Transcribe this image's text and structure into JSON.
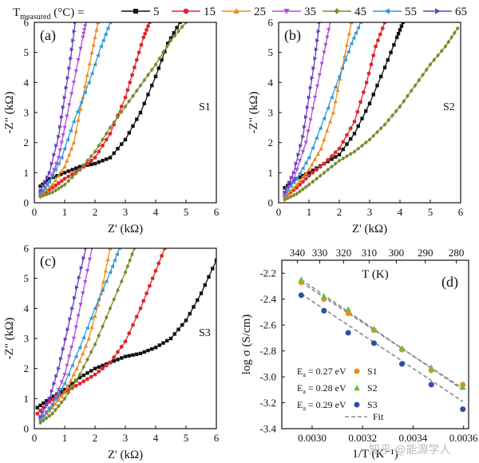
{
  "legend": {
    "label": "T",
    "label_sub": "measured",
    "label_unit": " (°C) =",
    "entries": [
      {
        "name": "5",
        "color": "#111111",
        "marker": "square"
      },
      {
        "name": "15",
        "color": "#e0262b",
        "marker": "circle"
      },
      {
        "name": "25",
        "color": "#f08a1c",
        "marker": "triangle-up"
      },
      {
        "name": "35",
        "color": "#b04fd8",
        "marker": "triangle-down"
      },
      {
        "name": "45",
        "color": "#7a8a2a",
        "marker": "diamond"
      },
      {
        "name": "55",
        "color": "#2f9ad8",
        "marker": "triangle-left"
      },
      {
        "name": "65",
        "color": "#6a3fbf",
        "marker": "triangle-right"
      }
    ]
  },
  "watermark": "知乎 @能源学人",
  "chart_data": [
    {
      "id": "a",
      "panel_label": "(a)",
      "sample_label": "S1",
      "type": "scatter",
      "xlabel": "Z' (kΩ)",
      "ylabel": "-Z\" (kΩ)",
      "xlim": [
        0,
        6
      ],
      "ylim": [
        0,
        6
      ],
      "xticks": [
        "0",
        "1",
        "2",
        "3",
        "4",
        "5",
        "6"
      ],
      "yticks": [
        "0",
        "1",
        "2",
        "3",
        "4",
        "5",
        "6"
      ],
      "series": [
        {
          "name": "5",
          "points": [
            [
              0.2,
              0.55
            ],
            [
              0.5,
              0.8
            ],
            [
              1.0,
              1.0
            ],
            [
              1.5,
              1.2
            ],
            [
              2.0,
              1.3
            ],
            [
              2.5,
              1.5
            ],
            [
              3.0,
              2.1
            ],
            [
              3.5,
              3.0
            ],
            [
              4.0,
              4.2
            ],
            [
              4.4,
              5.3
            ],
            [
              4.8,
              6.0
            ]
          ]
        },
        {
          "name": "15",
          "points": [
            [
              0.2,
              0.25
            ],
            [
              0.6,
              0.5
            ],
            [
              1.0,
              0.8
            ],
            [
              1.5,
              1.1
            ],
            [
              2.0,
              1.5
            ],
            [
              2.5,
              2.3
            ],
            [
              3.0,
              3.5
            ],
            [
              3.3,
              4.5
            ],
            [
              3.6,
              5.5
            ],
            [
              3.8,
              6.0
            ]
          ]
        },
        {
          "name": "25",
          "points": [
            [
              0.2,
              0.25
            ],
            [
              0.6,
              0.6
            ],
            [
              1.0,
              1.2
            ],
            [
              1.3,
              2.0
            ],
            [
              1.6,
              3.5
            ],
            [
              1.9,
              5.0
            ],
            [
              2.1,
              6.0
            ]
          ]
        },
        {
          "name": "35",
          "points": [
            [
              0.2,
              0.3
            ],
            [
              0.5,
              0.7
            ],
            [
              0.8,
              1.5
            ],
            [
              1.0,
              2.5
            ],
            [
              1.3,
              4.0
            ],
            [
              1.6,
              5.5
            ],
            [
              1.7,
              6.0
            ]
          ]
        },
        {
          "name": "45",
          "points": [
            [
              0.2,
              0.2
            ],
            [
              0.6,
              0.35
            ],
            [
              1.0,
              0.6
            ],
            [
              1.5,
              1.1
            ],
            [
              2.0,
              1.7
            ],
            [
              2.5,
              2.5
            ],
            [
              3.0,
              3.2
            ],
            [
              3.5,
              3.9
            ],
            [
              4.0,
              4.6
            ],
            [
              4.5,
              5.4
            ],
            [
              5.0,
              6.0
            ]
          ]
        },
        {
          "name": "55",
          "points": [
            [
              0.2,
              0.3
            ],
            [
              0.5,
              0.7
            ],
            [
              0.9,
              1.5
            ],
            [
              1.3,
              2.7
            ],
            [
              1.8,
              4.0
            ],
            [
              2.2,
              5.2
            ],
            [
              2.5,
              6.0
            ]
          ]
        },
        {
          "name": "65",
          "points": [
            [
              0.2,
              0.4
            ],
            [
              0.5,
              1.0
            ],
            [
              0.8,
              2.2
            ],
            [
              1.0,
              3.5
            ],
            [
              1.2,
              4.8
            ],
            [
              1.35,
              6.0
            ]
          ]
        }
      ]
    },
    {
      "id": "b",
      "panel_label": "(b)",
      "sample_label": "S2",
      "type": "scatter",
      "xlabel": "Z' (kΩ)",
      "ylabel": "-Z\" (kΩ)",
      "xlim": [
        0,
        6
      ],
      "ylim": [
        0,
        6
      ],
      "xticks": [
        "0",
        "1",
        "2",
        "3",
        "4",
        "5",
        "6"
      ],
      "yticks": [
        "0",
        "1",
        "2",
        "3",
        "4",
        "5",
        "6"
      ],
      "series": [
        {
          "name": "5",
          "points": [
            [
              0.2,
              0.5
            ],
            [
              0.6,
              0.8
            ],
            [
              1.0,
              1.0
            ],
            [
              1.5,
              1.3
            ],
            [
              2.0,
              1.6
            ],
            [
              2.5,
              2.3
            ],
            [
              3.0,
              3.3
            ],
            [
              3.5,
              4.5
            ],
            [
              3.9,
              5.5
            ],
            [
              4.1,
              6.0
            ]
          ]
        },
        {
          "name": "15",
          "points": [
            [
              0.2,
              0.2
            ],
            [
              0.6,
              0.5
            ],
            [
              1.0,
              0.9
            ],
            [
              1.5,
              1.3
            ],
            [
              2.0,
              1.8
            ],
            [
              2.5,
              2.7
            ],
            [
              2.9,
              4.0
            ],
            [
              3.2,
              5.2
            ],
            [
              3.5,
              6.0
            ]
          ]
        },
        {
          "name": "25",
          "points": [
            [
              0.2,
              0.2
            ],
            [
              0.6,
              0.6
            ],
            [
              1.0,
              1.1
            ],
            [
              1.4,
              1.8
            ],
            [
              1.8,
              3.0
            ],
            [
              2.1,
              4.5
            ],
            [
              2.4,
              6.0
            ]
          ]
        },
        {
          "name": "35",
          "points": [
            [
              0.2,
              0.25
            ],
            [
              0.5,
              0.8
            ],
            [
              0.9,
              2.0
            ],
            [
              1.2,
              3.5
            ],
            [
              1.5,
              5.0
            ],
            [
              1.7,
              6.0
            ]
          ]
        },
        {
          "name": "45",
          "points": [
            [
              0.2,
              0.1
            ],
            [
              0.6,
              0.3
            ],
            [
              1.0,
              0.6
            ],
            [
              1.5,
              1.0
            ],
            [
              2.0,
              1.4
            ],
            [
              2.5,
              1.7
            ],
            [
              3.0,
              2.1
            ],
            [
              3.5,
              2.6
            ],
            [
              4.0,
              3.2
            ],
            [
              4.5,
              3.9
            ],
            [
              5.0,
              4.6
            ],
            [
              5.5,
              5.2
            ],
            [
              5.9,
              5.8
            ]
          ]
        },
        {
          "name": "55",
          "points": [
            [
              0.2,
              0.3
            ],
            [
              0.6,
              0.8
            ],
            [
              1.0,
              1.5
            ],
            [
              1.5,
              2.8
            ],
            [
              2.0,
              4.2
            ],
            [
              2.4,
              5.3
            ],
            [
              2.7,
              6.0
            ]
          ]
        },
        {
          "name": "65",
          "points": [
            [
              0.2,
              0.35
            ],
            [
              0.5,
              1.0
            ],
            [
              0.8,
              2.2
            ],
            [
              1.0,
              3.5
            ],
            [
              1.2,
              4.8
            ],
            [
              1.35,
              6.0
            ]
          ]
        }
      ]
    },
    {
      "id": "c",
      "panel_label": "(c)",
      "sample_label": "S3",
      "type": "scatter",
      "xlabel": "Z' (kΩ)",
      "ylabel": "-Z\" (kΩ)",
      "xlim": [
        0,
        6
      ],
      "ylim": [
        0,
        6
      ],
      "xticks": [
        "0",
        "1",
        "2",
        "3",
        "4",
        "5",
        "6"
      ],
      "yticks": [
        "0",
        "1",
        "2",
        "3",
        "4",
        "5",
        "6"
      ],
      "series": [
        {
          "name": "5",
          "points": [
            [
              0.1,
              0.7
            ],
            [
              0.5,
              1.0
            ],
            [
              1.0,
              1.3
            ],
            [
              1.5,
              1.7
            ],
            [
              2.0,
              2.0
            ],
            [
              2.5,
              2.2
            ],
            [
              3.0,
              2.4
            ],
            [
              3.5,
              2.5
            ],
            [
              4.0,
              2.7
            ],
            [
              4.5,
              3.0
            ],
            [
              5.0,
              3.6
            ],
            [
              5.5,
              4.5
            ],
            [
              6.0,
              5.6
            ]
          ]
        },
        {
          "name": "15",
          "points": [
            [
              0.1,
              0.5
            ],
            [
              0.5,
              0.9
            ],
            [
              1.0,
              1.2
            ],
            [
              1.5,
              1.5
            ],
            [
              2.0,
              1.8
            ],
            [
              2.5,
              2.2
            ],
            [
              3.0,
              2.9
            ],
            [
              3.5,
              4.0
            ],
            [
              3.9,
              5.0
            ],
            [
              4.3,
              6.0
            ]
          ]
        },
        {
          "name": "25",
          "points": [
            [
              0.2,
              0.3
            ],
            [
              0.6,
              0.7
            ],
            [
              1.0,
              1.2
            ],
            [
              1.4,
              2.0
            ],
            [
              1.8,
              3.0
            ],
            [
              2.2,
              4.5
            ],
            [
              2.5,
              6.0
            ]
          ]
        },
        {
          "name": "35",
          "points": [
            [
              0.2,
              0.3
            ],
            [
              0.6,
              0.8
            ],
            [
              1.0,
              1.8
            ],
            [
              1.3,
              3.0
            ],
            [
              1.6,
              4.5
            ],
            [
              1.9,
              6.0
            ]
          ]
        },
        {
          "name": "45",
          "points": [
            [
              0.2,
              0.2
            ],
            [
              0.6,
              0.5
            ],
            [
              1.0,
              1.0
            ],
            [
              1.5,
              1.8
            ],
            [
              2.0,
              2.8
            ],
            [
              2.5,
              4.0
            ],
            [
              3.0,
              5.2
            ],
            [
              3.3,
              6.0
            ]
          ]
        },
        {
          "name": "55",
          "points": [
            [
              0.2,
              0.3
            ],
            [
              0.6,
              0.8
            ],
            [
              1.0,
              1.5
            ],
            [
              1.5,
              2.7
            ],
            [
              2.0,
              4.0
            ],
            [
              2.5,
              5.2
            ],
            [
              2.8,
              6.0
            ]
          ]
        },
        {
          "name": "65",
          "points": [
            [
              0.2,
              0.4
            ],
            [
              0.5,
              1.0
            ],
            [
              0.8,
              2.0
            ],
            [
              1.1,
              3.3
            ],
            [
              1.4,
              4.7
            ],
            [
              1.7,
              6.0
            ]
          ]
        }
      ]
    },
    {
      "id": "d",
      "panel_label": "(d)",
      "type": "scatter",
      "xlabel": "1/T (K⁻¹)",
      "ylabel": "log σ (S/cm)",
      "top_xlabel": "T (K)",
      "xlim": [
        0.00288,
        0.00362
      ],
      "ylim": [
        -3.4,
        -2.1
      ],
      "xticks": [
        {
          "value": 0.003,
          "label": "0.0030"
        },
        {
          "value": 0.0032,
          "label": "0.0032"
        },
        {
          "value": 0.0034,
          "label": "0.0034"
        },
        {
          "value": 0.0036,
          "label": "0.0036"
        }
      ],
      "yticks": [
        "-2.2",
        "-2.4",
        "-2.6",
        "-2.8",
        "-3.0",
        "-3.2",
        "-3.4"
      ],
      "top_xticks": [
        "340",
        "330",
        "320",
        "310",
        "300",
        "290",
        "280"
      ],
      "series": [
        {
          "name": "S1",
          "color": "#f08a1c",
          "marker": "circle",
          "ea": "0.27 eV",
          "x": [
            0.002957,
            0.003047,
            0.003143,
            0.003245,
            0.003356,
            0.003472,
            0.003597
          ],
          "y": [
            -2.27,
            -2.4,
            -2.51,
            -2.64,
            -2.79,
            -2.95,
            -3.06
          ]
        },
        {
          "name": "S2",
          "color": "#6fbf3f",
          "marker": "triangle-up",
          "ea": "0.28 eV",
          "x": [
            0.002957,
            0.003047,
            0.003143,
            0.003245,
            0.003356,
            0.003472,
            0.003597
          ],
          "y": [
            -2.25,
            -2.38,
            -2.48,
            -2.63,
            -2.78,
            -2.93,
            -3.08
          ]
        },
        {
          "name": "S3",
          "color": "#2e4fa3",
          "marker": "circle",
          "ea": "0.29 eV",
          "x": [
            0.002957,
            0.003047,
            0.003143,
            0.003245,
            0.003356,
            0.003472,
            0.003597
          ],
          "y": [
            -2.37,
            -2.49,
            -2.66,
            -2.74,
            -2.9,
            -3.06,
            -3.25
          ]
        }
      ],
      "fit": {
        "name": "Fit",
        "lines": [
          {
            "x": [
              0.002957,
              0.003597
            ],
            "y": [
              -2.27,
              -3.09
            ]
          },
          {
            "x": [
              0.002957,
              0.003597
            ],
            "y": [
              -2.25,
              -3.1
            ]
          },
          {
            "x": [
              0.002957,
              0.003597
            ],
            "y": [
              -2.36,
              -3.19
            ]
          }
        ]
      },
      "ea_label": "E",
      "ea_label_sub": "a"
    }
  ]
}
